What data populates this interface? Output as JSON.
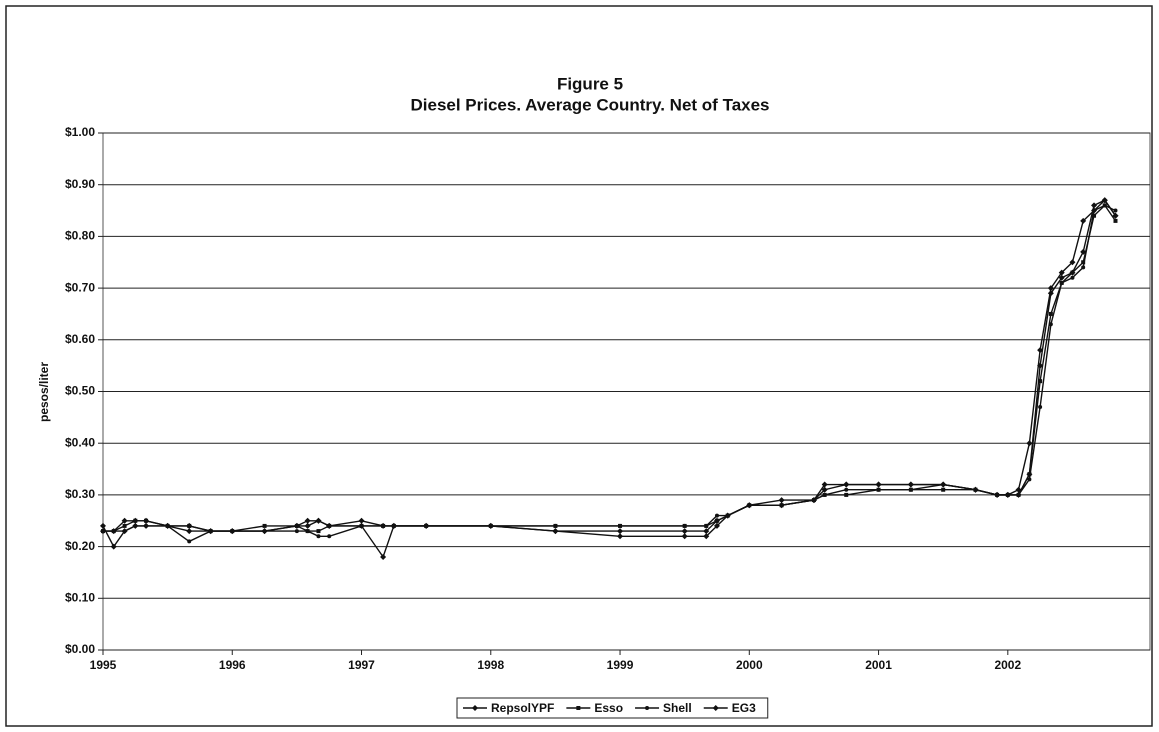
{
  "chart_data": {
    "type": "line",
    "title": "Figure 5",
    "subtitle": "Diesel Prices. Average Country. Net of Taxes",
    "y_label": "pesos/liter",
    "x": [
      1995.0,
      1995.083,
      1995.167,
      1995.25,
      1995.333,
      1995.5,
      1995.667,
      1995.833,
      1996.0,
      1996.25,
      1996.5,
      1996.583,
      1996.667,
      1996.75,
      1997.0,
      1997.167,
      1997.25,
      1997.5,
      1998.0,
      1998.5,
      1999.0,
      1999.5,
      1999.667,
      1999.75,
      1999.833,
      2000.0,
      2000.25,
      2000.5,
      2000.583,
      2000.75,
      2001.0,
      2001.25,
      2001.5,
      2001.75,
      2001.917,
      2002.0,
      2002.083,
      2002.167,
      2002.25,
      2002.333,
      2002.417,
      2002.5,
      2002.583,
      2002.667,
      2002.75,
      2002.833
    ],
    "series": [
      {
        "name": "RepsolYPF",
        "color": "#111111",
        "marker": "diamond",
        "values": [
          0.24,
          0.2,
          0.23,
          0.24,
          0.24,
          0.24,
          0.23,
          0.23,
          0.23,
          0.23,
          0.24,
          0.25,
          0.25,
          0.24,
          0.24,
          0.18,
          0.24,
          0.24,
          0.24,
          0.23,
          0.23,
          0.23,
          0.23,
          0.25,
          0.26,
          0.28,
          0.29,
          0.29,
          0.31,
          0.32,
          0.32,
          0.32,
          0.32,
          0.31,
          0.3,
          0.3,
          0.31,
          0.4,
          0.58,
          0.7,
          0.73,
          0.75,
          0.83,
          0.85,
          0.87,
          0.84
        ]
      },
      {
        "name": "Esso",
        "color": "#111111",
        "marker": "square",
        "values": [
          0.23,
          0.23,
          0.24,
          0.25,
          0.25,
          0.24,
          0.24,
          0.23,
          0.23,
          0.24,
          0.24,
          0.23,
          0.23,
          0.24,
          0.24,
          0.24,
          0.24,
          0.24,
          0.24,
          0.24,
          0.24,
          0.24,
          0.24,
          0.25,
          0.26,
          0.28,
          0.28,
          0.29,
          0.3,
          0.3,
          0.31,
          0.31,
          0.31,
          0.31,
          0.3,
          0.3,
          0.3,
          0.34,
          0.52,
          0.65,
          0.71,
          0.73,
          0.75,
          0.84,
          0.86,
          0.83
        ]
      },
      {
        "name": "Shell",
        "color": "#111111",
        "marker": "circle",
        "values": [
          0.23,
          0.23,
          0.23,
          0.24,
          0.24,
          0.24,
          0.21,
          0.23,
          0.23,
          0.23,
          0.23,
          0.23,
          0.22,
          0.22,
          0.24,
          0.24,
          0.24,
          0.24,
          0.24,
          0.24,
          0.24,
          0.24,
          0.24,
          0.26,
          0.26,
          0.28,
          0.28,
          0.29,
          0.3,
          0.31,
          0.31,
          0.31,
          0.32,
          0.31,
          0.3,
          0.3,
          0.3,
          0.33,
          0.47,
          0.63,
          0.71,
          0.72,
          0.74,
          0.85,
          0.86,
          0.85
        ]
      },
      {
        "name": "EG3",
        "color": "#111111",
        "marker": "diamond",
        "values": [
          0.23,
          0.23,
          0.25,
          0.25,
          0.25,
          0.24,
          0.24,
          0.23,
          0.23,
          0.23,
          0.24,
          0.24,
          0.25,
          0.24,
          0.25,
          0.24,
          0.24,
          0.24,
          0.24,
          0.23,
          0.22,
          0.22,
          0.22,
          0.24,
          0.26,
          0.28,
          0.28,
          0.29,
          0.32,
          0.32,
          0.32,
          0.32,
          0.32,
          0.31,
          0.3,
          0.3,
          0.3,
          0.34,
          0.55,
          0.69,
          0.72,
          0.73,
          0.77,
          0.86,
          0.87,
          0.84
        ]
      }
    ],
    "xlim": [
      1995,
      2003.1
    ],
    "xticks": [
      1995,
      1996,
      1997,
      1998,
      1999,
      2000,
      2001,
      2002
    ],
    "ylim": [
      0,
      1
    ],
    "yticks": [
      {
        "value": 0,
        "label": "$0.00"
      },
      {
        "value": 0.1,
        "label": "$0.10"
      },
      {
        "value": 0.2,
        "label": "$0.20"
      },
      {
        "value": 0.3,
        "label": "$0.30"
      },
      {
        "value": 0.4,
        "label": "$0.40"
      },
      {
        "value": 0.5,
        "label": "$0.50"
      },
      {
        "value": 0.6,
        "label": "$0.60"
      },
      {
        "value": 0.7,
        "label": "$0.70"
      },
      {
        "value": 0.8,
        "label": "$0.80"
      },
      {
        "value": 0.9,
        "label": "$0.90"
      },
      {
        "value": 1,
        "label": "$1.00"
      }
    ],
    "grid": true,
    "legend": "bottom"
  }
}
